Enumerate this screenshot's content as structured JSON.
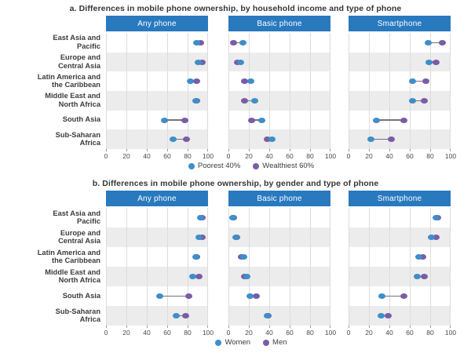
{
  "colors": {
    "series1": "#3e8ec9",
    "series2": "#7a5ca6",
    "panel_header": "#2979bf",
    "row_alt": "#ececec",
    "gridline": "#dcdcdc",
    "connector": "#757575",
    "text": "#3c3c3c"
  },
  "chart_data": [
    {
      "type": "scatter",
      "title": "a. Differences in mobile phone ownership, by household income and type of phone",
      "categories": [
        [
          "East Asia and",
          "Pacific"
        ],
        [
          "Europe and",
          "Central Asia"
        ],
        [
          "Latin America and",
          "the Caribbean"
        ],
        [
          "Middle East and",
          "North Africa"
        ],
        [
          "South Asia"
        ],
        [
          "Sub-Saharan",
          "Africa"
        ]
      ],
      "xlim": [
        0,
        100
      ],
      "xticks": [
        0,
        20,
        40,
        60,
        80,
        100
      ],
      "grid": true,
      "legend_position": "bottom",
      "legend": [
        {
          "label": "Poorest 40%",
          "color": "#3e8ec9"
        },
        {
          "label": "Wealthiest 60%",
          "color": "#7a5ca6"
        }
      ],
      "panels": [
        {
          "label": "Any phone",
          "series": [
            {
              "name": "Poorest 40%",
              "color": "#3e8ec9",
              "values": [
                89,
                90,
                83,
                88,
                57,
                66
              ]
            },
            {
              "name": "Wealthiest 60%",
              "color": "#7a5ca6",
              "values": [
                93,
                94,
                89,
                89,
                77,
                79
              ]
            }
          ]
        },
        {
          "label": "Basic phone",
          "series": [
            {
              "name": "Poorest 40%",
              "color": "#3e8ec9",
              "values": [
                14,
                12,
                22,
                26,
                33,
                43
              ]
            },
            {
              "name": "Wealthiest 60%",
              "color": "#7a5ca6",
              "values": [
                5,
                9,
                16,
                16,
                23,
                38
              ]
            }
          ]
        },
        {
          "label": "Smartphone",
          "series": [
            {
              "name": "Poorest 40%",
              "color": "#3e8ec9",
              "values": [
                78,
                79,
                63,
                63,
                27,
                22
              ]
            },
            {
              "name": "Wealthiest 60%",
              "color": "#7a5ca6",
              "values": [
                92,
                86,
                76,
                74,
                54,
                42
              ]
            }
          ]
        }
      ]
    },
    {
      "type": "scatter",
      "title": "b. Differences in mobile phone ownership, by gender and type of phone",
      "categories": [
        [
          "East Asia and",
          "Pacific"
        ],
        [
          "Europe and",
          "Central Asia"
        ],
        [
          "Latin America and",
          "the Caribbean"
        ],
        [
          "Middle East and",
          "North Africa"
        ],
        [
          "South Asia"
        ],
        [
          "Sub-Saharan",
          "Africa"
        ]
      ],
      "xlim": [
        0,
        100
      ],
      "xticks": [
        0,
        20,
        40,
        60,
        80,
        100
      ],
      "grid": true,
      "legend_position": "bottom",
      "legend": [
        {
          "label": "Women",
          "color": "#3e8ec9"
        },
        {
          "label": "Men",
          "color": "#7a5ca6"
        }
      ],
      "panels": [
        {
          "label": "Any phone",
          "series": [
            {
              "name": "Women",
              "color": "#3e8ec9",
              "values": [
                93,
                91,
                88,
                85,
                53,
                69
              ]
            },
            {
              "name": "Men",
              "color": "#7a5ca6",
              "values": [
                94,
                94,
                89,
                91,
                81,
                78
              ]
            }
          ]
        },
        {
          "label": "Basic phone",
          "series": [
            {
              "name": "Women",
              "color": "#3e8ec9",
              "values": [
                4,
                7,
                15,
                18,
                21,
                38
              ]
            },
            {
              "name": "Men",
              "color": "#7a5ca6",
              "values": [
                5,
                8,
                13,
                16,
                27,
                39
              ]
            }
          ]
        },
        {
          "label": "Smartphone",
          "series": [
            {
              "name": "Women",
              "color": "#3e8ec9",
              "values": [
                86,
                81,
                69,
                67,
                33,
                32
              ]
            },
            {
              "name": "Men",
              "color": "#7a5ca6",
              "values": [
                87,
                86,
                73,
                74,
                54,
                39
              ]
            }
          ]
        }
      ]
    }
  ]
}
